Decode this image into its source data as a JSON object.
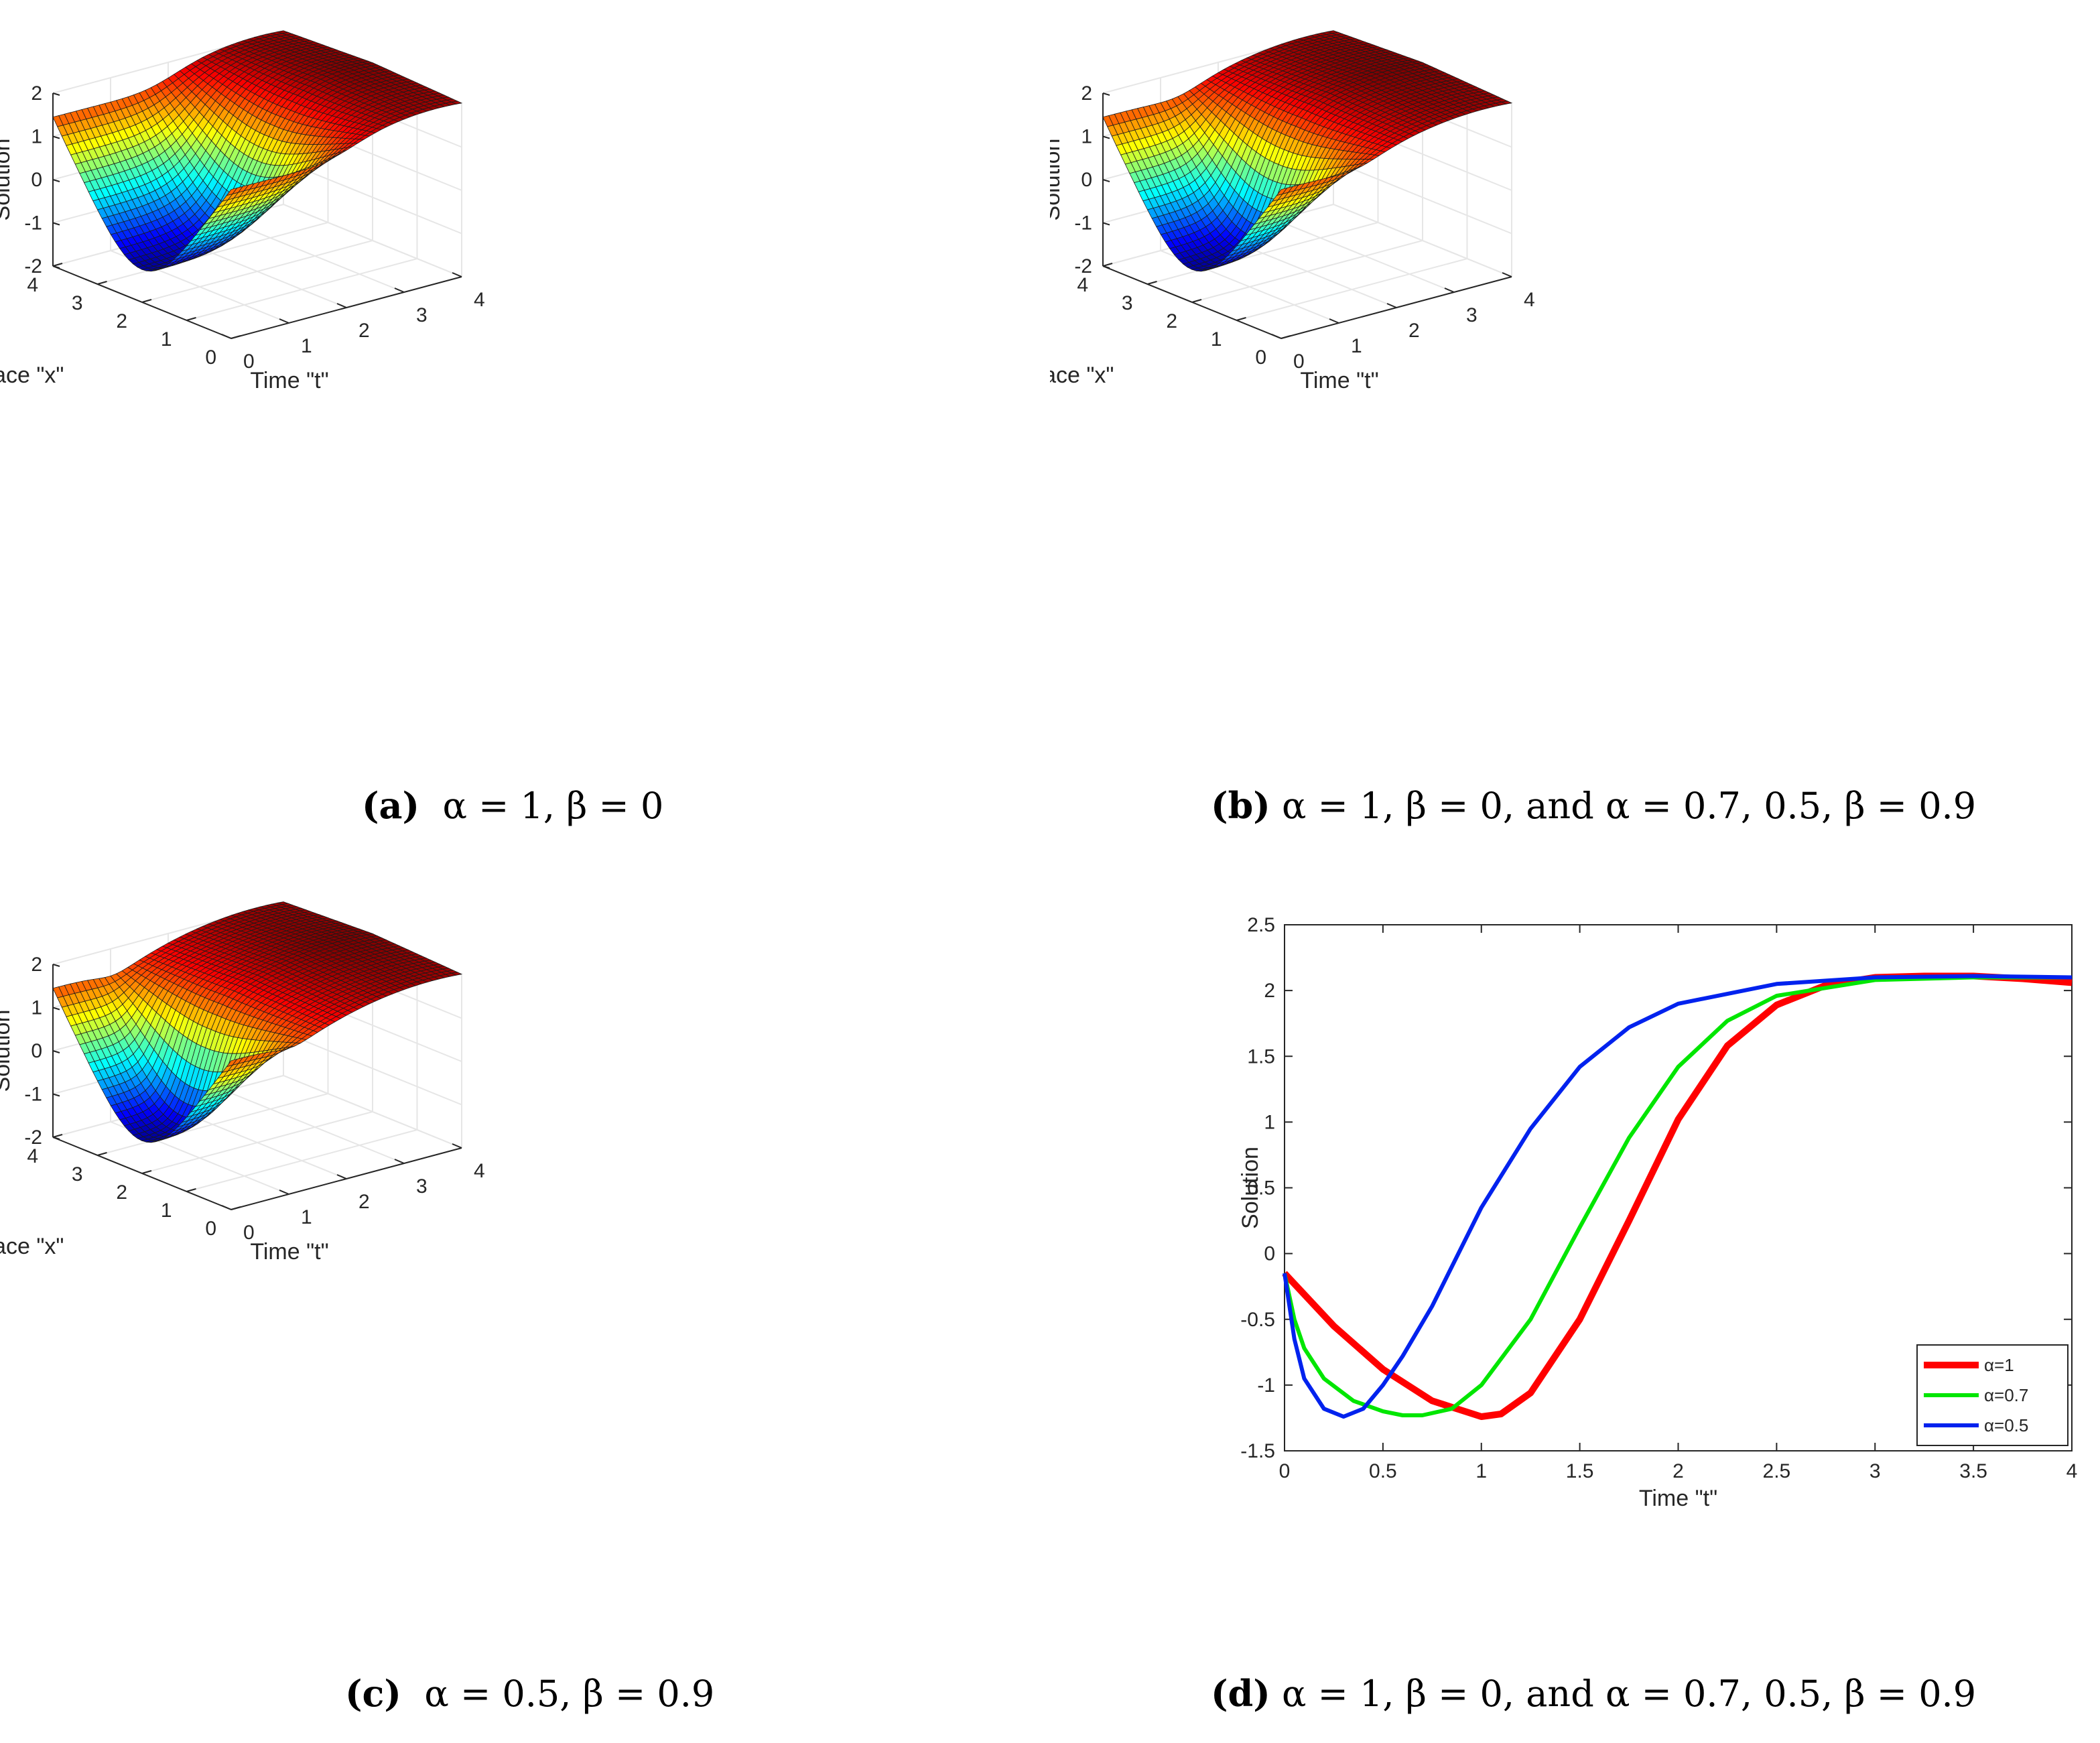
{
  "colors": {
    "alpha1": "#ff0000",
    "alpha07": "#00e600",
    "alpha05": "#0022ee",
    "surface_peak": "#8b1a12"
  },
  "chart_data": [
    {
      "id": "a",
      "type": "surface",
      "caption_tag": "(a)",
      "caption_text": "α = 1, β = 0",
      "zlabel": "Solution",
      "xlabel": "Space \"x\"",
      "ylabel": "Time \"t\"",
      "zlim": [
        -2,
        2
      ],
      "zticks": [
        "-2",
        "-1",
        "0",
        "1",
        "2"
      ],
      "xlim": [
        0,
        4
      ],
      "xticks": [
        "0",
        "1",
        "2",
        "3",
        "4"
      ],
      "tlim": [
        0,
        4
      ],
      "tticks": [
        "0",
        "1",
        "2",
        "3",
        "4"
      ],
      "colormap": "jet",
      "alpha": 1,
      "beta": 0
    },
    {
      "id": "b",
      "type": "surface",
      "caption_tag": "(b)",
      "caption_text": "α = 1, β = 0, and α = 0.7, 0.5, β = 0.9",
      "zlabel": "Solution",
      "xlabel": "Space \"x\"",
      "ylabel": "Time \"t\"",
      "zlim": [
        -2,
        2
      ],
      "zticks": [
        "-2",
        "-1",
        "0",
        "1",
        "2"
      ],
      "xlim": [
        0,
        4
      ],
      "xticks": [
        "0",
        "1",
        "2",
        "3",
        "4"
      ],
      "tlim": [
        0,
        4
      ],
      "tticks": [
        "0",
        "1",
        "2",
        "3",
        "4"
      ],
      "colormap": "jet",
      "alpha": 0.7,
      "beta": 0.9
    },
    {
      "id": "c",
      "type": "surface",
      "caption_tag": "(c)",
      "caption_text": "α = 0.5, β = 0.9",
      "zlabel": "Solution",
      "xlabel": "Space \"x\"",
      "ylabel": "Time \"t\"",
      "zlim": [
        -2,
        2
      ],
      "zticks": [
        "-2",
        "-1",
        "0",
        "1",
        "2"
      ],
      "xlim": [
        0,
        4
      ],
      "xticks": [
        "0",
        "1",
        "2",
        "3",
        "4"
      ],
      "tlim": [
        0,
        4
      ],
      "tticks": [
        "0",
        "1",
        "2",
        "3",
        "4"
      ],
      "colormap": "jet",
      "alpha": 0.5,
      "beta": 0.9
    },
    {
      "id": "d",
      "type": "line",
      "caption_tag": "(d)",
      "caption_text": "α = 1, β = 0, and α = 0.7, 0.5, β = 0.9",
      "xlabel": "Time \"t\"",
      "ylabel": "Solution",
      "xlim": [
        0,
        4
      ],
      "ylim": [
        -1.5,
        2.5
      ],
      "xticks": [
        "0",
        "0.5",
        "1",
        "1.5",
        "2",
        "2.5",
        "3",
        "3.5",
        "4"
      ],
      "yticks": [
        "-1.5",
        "-1",
        "-0.5",
        "0",
        "0.5",
        "1",
        "1.5",
        "2",
        "2.5"
      ],
      "legend_position": "bottom-right",
      "series": [
        {
          "name": "α=1",
          "color": "#ff0000",
          "x": [
            0,
            0.25,
            0.5,
            0.75,
            1.0,
            1.1,
            1.25,
            1.5,
            1.75,
            2.0,
            2.25,
            2.5,
            2.75,
            3.0,
            3.25,
            3.5,
            3.75,
            4.0
          ],
          "y": [
            -0.15,
            -0.55,
            -0.88,
            -1.12,
            -1.24,
            -1.22,
            -1.06,
            -0.5,
            0.25,
            1.02,
            1.58,
            1.89,
            2.04,
            2.1,
            2.11,
            2.11,
            2.09,
            2.06
          ]
        },
        {
          "name": "α=0.7",
          "color": "#00e600",
          "x": [
            0,
            0.05,
            0.1,
            0.2,
            0.35,
            0.5,
            0.6,
            0.7,
            0.85,
            1.0,
            1.25,
            1.5,
            1.75,
            2.0,
            2.25,
            2.5,
            3.0,
            3.5,
            4.0
          ],
          "y": [
            -0.15,
            -0.5,
            -0.72,
            -0.95,
            -1.12,
            -1.2,
            -1.23,
            -1.23,
            -1.18,
            -1.0,
            -0.5,
            0.2,
            0.88,
            1.42,
            1.77,
            1.96,
            2.08,
            2.1,
            2.1
          ]
        },
        {
          "name": "α=0.5",
          "color": "#0022ee",
          "x": [
            0,
            0.05,
            0.1,
            0.2,
            0.3,
            0.4,
            0.5,
            0.6,
            0.75,
            1.0,
            1.25,
            1.5,
            1.75,
            2.0,
            2.5,
            3.0,
            3.5,
            4.0
          ],
          "y": [
            -0.15,
            -0.65,
            -0.95,
            -1.18,
            -1.24,
            -1.18,
            -1.0,
            -0.78,
            -0.4,
            0.35,
            0.95,
            1.42,
            1.72,
            1.9,
            2.05,
            2.1,
            2.11,
            2.1
          ]
        }
      ]
    }
  ]
}
